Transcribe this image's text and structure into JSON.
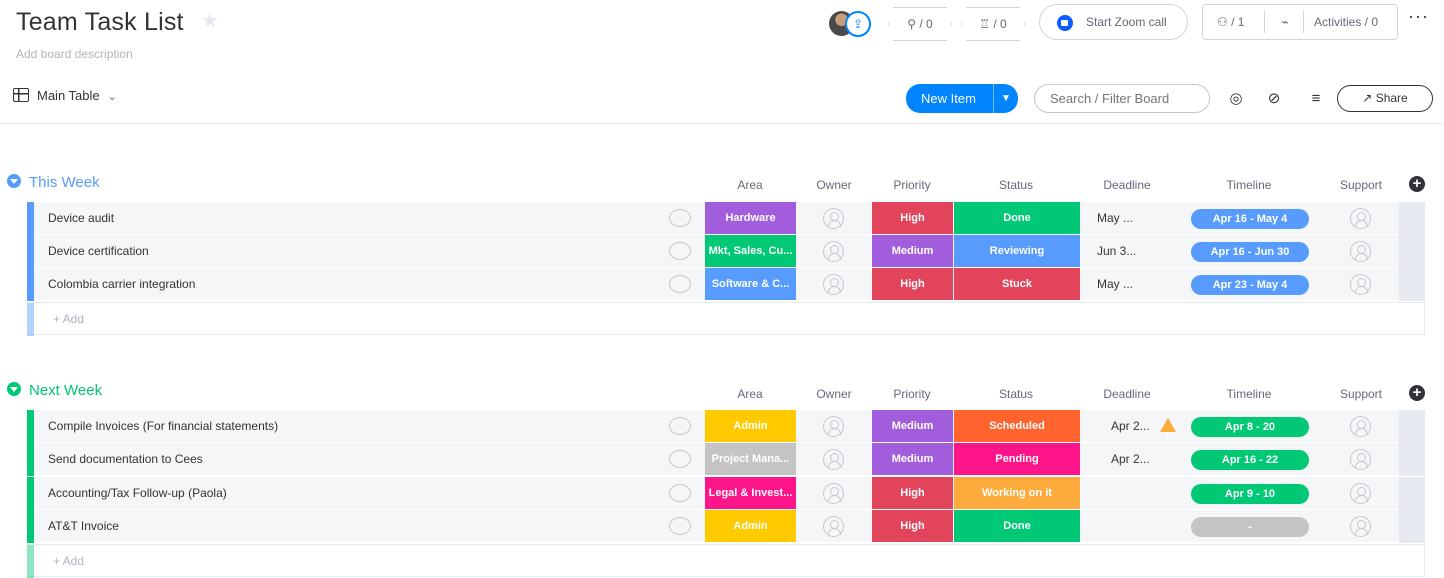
{
  "header": {
    "title": "Team Task List",
    "description": "Add board description",
    "integrations_count": "/ 0",
    "automations_count": "/ 0",
    "zoom_label": "Start Zoom call",
    "members_count": "/ 1",
    "activities_label": "Activities / 0",
    "more_label": "···"
  },
  "toolbar": {
    "view_label": "Main Table",
    "new_item_label": "New Item",
    "search_placeholder": "Search / Filter Board",
    "share_label": "Share"
  },
  "columns": [
    "Area",
    "Owner",
    "Priority",
    "Status",
    "Deadline",
    "Timeline",
    "Support"
  ],
  "colors": {
    "this_week": "#579bfc",
    "next_week": "#00c875",
    "accent": "#0085ff"
  },
  "groups": [
    {
      "title": "This Week",
      "add_label": "+ Add",
      "rows": [
        {
          "name": "Device audit",
          "area": "Hardware",
          "area_color": "#a25ddc",
          "priority": "High",
          "priority_color": "#e2445c",
          "status": "Done",
          "status_color": "#00c875",
          "deadline": "May ...",
          "timeline": "Apr 16 - May 4",
          "timeline_color": "#579bfc"
        },
        {
          "name": "Device certification",
          "area": "Mkt, Sales, Cu...",
          "area_color": "#00c875",
          "priority": "Medium",
          "priority_color": "#a25ddc",
          "status": "Reviewing",
          "status_color": "#579bfc",
          "deadline": "Jun 3...",
          "timeline": "Apr 16 - Jun 30",
          "timeline_color": "#579bfc"
        },
        {
          "name": "Colombia carrier integration",
          "area": "Software & C...",
          "area_color": "#579bfc",
          "priority": "High",
          "priority_color": "#e2445c",
          "status": "Stuck",
          "status_color": "#e2445c",
          "deadline": "May ...",
          "timeline": "Apr 23 - May 4",
          "timeline_color": "#579bfc"
        }
      ]
    },
    {
      "title": "Next Week",
      "add_label": "+ Add",
      "rows": [
        {
          "name": "Compile Invoices (For financial statements)",
          "area": "Admin",
          "area_color": "#ffcb00",
          "priority": "Medium",
          "priority_color": "#a25ddc",
          "status": "Scheduled",
          "status_color": "#ff642e",
          "deadline": "Apr 2...",
          "warning": true,
          "timeline": "Apr 8 - 20",
          "timeline_color": "#00c875"
        },
        {
          "name": "Send documentation to Cees",
          "area": "Project Mana...",
          "area_color": "#c4c4c4",
          "priority": "Medium",
          "priority_color": "#a25ddc",
          "status": "Pending",
          "status_color": "#ff158a",
          "deadline": "Apr 2...",
          "timeline": "Apr 16 - 22",
          "timeline_color": "#00c875"
        },
        {
          "name": "Accounting/Tax Follow-up (Paola)",
          "area": "Legal & Invest...",
          "area_color": "#ff158a",
          "priority": "High",
          "priority_color": "#e2445c",
          "status": "Working on it",
          "status_color": "#fdab3d",
          "deadline": "",
          "timeline": "Apr 9 - 10",
          "timeline_color": "#00c875"
        },
        {
          "name": "AT&T Invoice",
          "area": "Admin",
          "area_color": "#ffcb00",
          "priority": "High",
          "priority_color": "#e2445c",
          "status": "Done",
          "status_color": "#00c875",
          "deadline": "",
          "timeline": "-",
          "timeline_color": "#c4c4c4"
        }
      ]
    }
  ]
}
